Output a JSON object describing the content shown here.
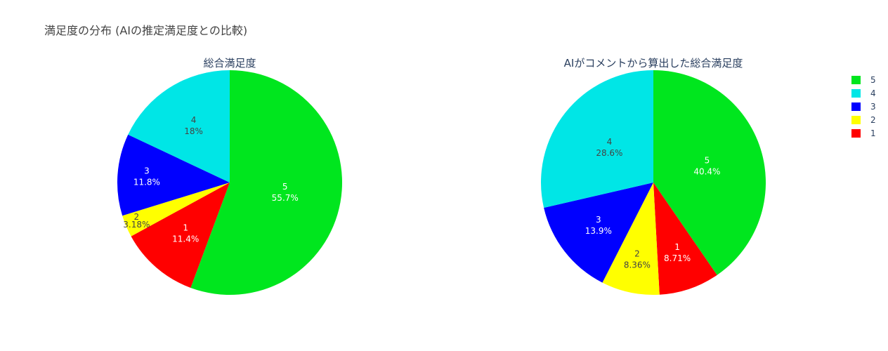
{
  "figure": {
    "title": "満足度の分布 (AIの推定満足度との比較)"
  },
  "chart_data": [
    {
      "type": "pie",
      "title": "総合満足度",
      "labels": [
        "5",
        "1",
        "2",
        "3",
        "4"
      ],
      "values": [
        55.7,
        11.4,
        3.18,
        11.8,
        18.0
      ],
      "value_labels": [
        "55.7%",
        "11.4%",
        "3.18%",
        "11.8%",
        "18%"
      ],
      "colors": [
        "#00e61e",
        "#ff0000",
        "#ffff00",
        "#0000ff",
        "#00e6e6"
      ]
    },
    {
      "type": "pie",
      "title": "AIがコメントから算出した総合満足度",
      "labels": [
        "5",
        "1",
        "2",
        "3",
        "4"
      ],
      "values": [
        40.4,
        8.71,
        8.36,
        13.9,
        28.6
      ],
      "value_labels": [
        "40.4%",
        "8.71%",
        "8.36%",
        "13.9%",
        "28.6%"
      ],
      "colors": [
        "#00e61e",
        "#ff0000",
        "#ffff00",
        "#0000ff",
        "#00e6e6"
      ]
    }
  ],
  "legend": {
    "items": [
      {
        "label": "5",
        "color": "#00e61e"
      },
      {
        "label": "4",
        "color": "#00e6e6"
      },
      {
        "label": "3",
        "color": "#0000ff"
      },
      {
        "label": "2",
        "color": "#ffff00"
      },
      {
        "label": "1",
        "color": "#ff0000"
      }
    ]
  }
}
